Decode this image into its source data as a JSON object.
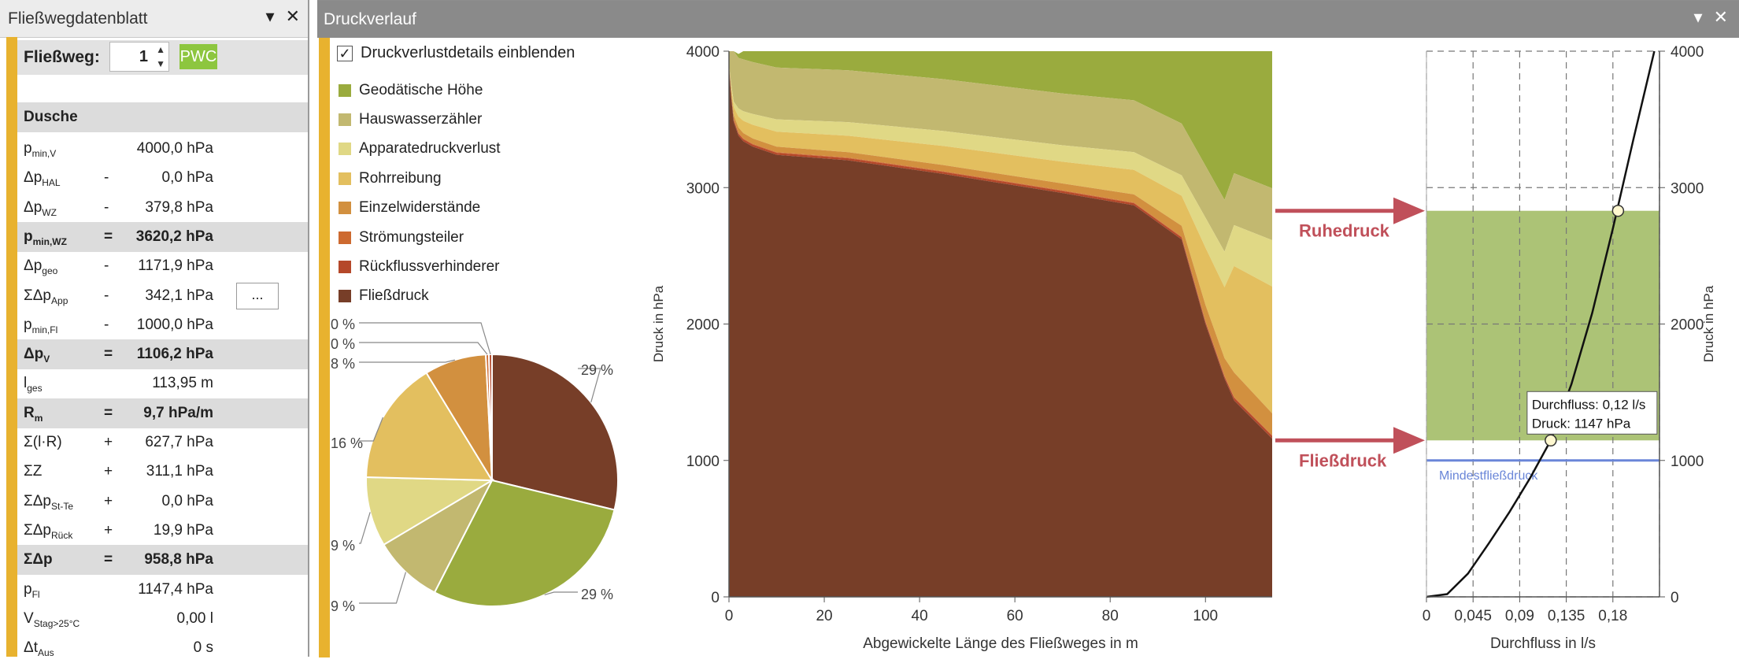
{
  "left": {
    "title": "Fließwegdatenblatt",
    "dropdown_icon": "triangle-down-icon",
    "close_icon": "close-icon",
    "fliessweg_label": "Fließweg:",
    "fliessweg_value": "1",
    "pwc_label": "PWC",
    "section_title": "Dusche",
    "rows": [
      {
        "sym": "p",
        "sub": "min,V",
        "op": "",
        "val": "4000,0 hPa",
        "band": false
      },
      {
        "sym": "Δp",
        "sub": "HAL",
        "op": "-",
        "val": "0,0 hPa",
        "band": false
      },
      {
        "sym": "Δp",
        "sub": "WZ",
        "op": "-",
        "val": "379,8 hPa",
        "band": false
      },
      {
        "sym": "p",
        "sub": "min,WZ",
        "op": "=",
        "val": "3620,2 hPa",
        "band": true
      },
      {
        "sym": "Δp",
        "sub": "geo",
        "op": "-",
        "val": "1171,9 hPa",
        "band": false
      },
      {
        "sym": "ΣΔp",
        "sub": "App",
        "op": "-",
        "val": "342,1 hPa",
        "band": false,
        "button": "..."
      },
      {
        "sym": "p",
        "sub": "min,Fl",
        "op": "-",
        "val": "1000,0 hPa",
        "band": false
      },
      {
        "sym": "Δp",
        "sub": "V",
        "op": "=",
        "val": "1106,2 hPa",
        "band": true
      },
      {
        "sym": "l",
        "sub": "ges",
        "op": "",
        "val": "113,95 m",
        "band": false
      },
      {
        "sym": "R",
        "sub": "m",
        "op": "=",
        "val": "9,7 hPa/m",
        "band": true
      },
      {
        "sym": "Σ(l·R)",
        "sub": "",
        "op": "+",
        "val": "627,7 hPa",
        "band": false
      },
      {
        "sym": "ΣZ",
        "sub": "",
        "op": "+",
        "val": "311,1 hPa",
        "band": false
      },
      {
        "sym": "ΣΔp",
        "sub": "St-Te",
        "op": "+",
        "val": "0,0 hPa",
        "band": false
      },
      {
        "sym": "ΣΔp",
        "sub": "Rück",
        "op": "+",
        "val": "19,9 hPa",
        "band": false
      },
      {
        "sym": "ΣΔp",
        "sub": "",
        "op": "=",
        "val": "958,8 hPa",
        "band": true
      },
      {
        "sym": "p",
        "sub": "Fl",
        "op": "",
        "val": "1147,4 hPa",
        "band": false
      },
      {
        "sym": "V",
        "sub": "Stag>25°C",
        "op": "",
        "val": "0,00 l",
        "band": false
      },
      {
        "sym": "Δt",
        "sub": "Aus",
        "op": "",
        "val": "0 s",
        "band": false
      }
    ]
  },
  "right": {
    "title": "Druckverlauf",
    "dropdown_icon": "triangle-down-icon",
    "close_icon": "close-icon",
    "details_checkbox_label": "Druckverlustdetails einblenden",
    "details_checked": true,
    "legend": [
      {
        "label": "Geodätische Höhe",
        "color": "#9aab3e"
      },
      {
        "label": "Hauswasserzähler",
        "color": "#c2b870"
      },
      {
        "label": "Apparatedruckverlust",
        "color": "#e0d885"
      },
      {
        "label": "Rohrreibung",
        "color": "#e3bf5f"
      },
      {
        "label": "Einzelwiderstände",
        "color": "#d2903f"
      },
      {
        "label": "Strömungsteiler",
        "color": "#cd6a30"
      },
      {
        "label": "Rückflussverhinderer",
        "color": "#b5482a"
      },
      {
        "label": "Fließdruck",
        "color": "#773e28"
      }
    ],
    "ruhedruck_label": "Ruhedruck",
    "fliessdruck_label": "Fließdruck",
    "arrow_color": "#c0505a",
    "mindestfliessdruck_label": "Mindestfließdruck",
    "tooltip_line1": "Durchfluss: 0,12 l/s",
    "tooltip_line2": "Druck: 1147 hPa"
  },
  "chart_data": [
    {
      "type": "pie",
      "slices": [
        {
          "series": "Fließdruck",
          "value": 29,
          "label": "29 %",
          "color": "#773e28"
        },
        {
          "series": "Geodätische Höhe",
          "value": 29,
          "label": "29 %",
          "color": "#9aab3e"
        },
        {
          "series": "Hauswasserzähler",
          "value": 9,
          "label": "9 %",
          "color": "#c2b870"
        },
        {
          "series": "Apparatedruckverlust",
          "value": 9,
          "label": "9 %",
          "color": "#e0d885"
        },
        {
          "series": "Rohrreibung",
          "value": 16,
          "label": "16 %",
          "color": "#e3bf5f"
        },
        {
          "series": "Einzelwiderstände",
          "value": 8,
          "label": "8 %",
          "color": "#d2903f"
        },
        {
          "series": "Strömungsteiler",
          "value": 0.4,
          "label": "0 %",
          "color": "#cd6a30"
        },
        {
          "series": "Rückflussverhinderer",
          "value": 0.4,
          "label": "0 %",
          "color": "#b5482a"
        }
      ]
    },
    {
      "type": "area",
      "stacked": true,
      "xlabel": "Abgewickelte Länge des Fließweges in m",
      "ylabel": "Druck in hPa",
      "xlim": [
        0,
        114
      ],
      "ylim": [
        0,
        4000
      ],
      "xticks": [
        0,
        20,
        40,
        60,
        80,
        100
      ],
      "yticks": [
        0,
        1000,
        2000,
        3000,
        4000
      ],
      "x": [
        0,
        0.5,
        1,
        2,
        3,
        5,
        10,
        25,
        45,
        70,
        85,
        95,
        100,
        104,
        106,
        114
      ],
      "series": [
        {
          "name": "Fließdruck",
          "color": "#773e28",
          "values": [
            3900,
            3650,
            3480,
            3380,
            3340,
            3300,
            3240,
            3200,
            3100,
            2960,
            2870,
            2620,
            2000,
            1600,
            1440,
            1160
          ]
        },
        {
          "name": "Rückflussverhinderer",
          "color": "#b5482a",
          "values": [
            0,
            10,
            15,
            15,
            15,
            15,
            15,
            15,
            15,
            15,
            15,
            15,
            15,
            15,
            20,
            20
          ]
        },
        {
          "name": "Strömungsteiler",
          "color": "#cd6a30",
          "values": [
            0,
            5,
            5,
            5,
            5,
            5,
            5,
            5,
            5,
            5,
            5,
            5,
            5,
            5,
            5,
            5
          ]
        },
        {
          "name": "Einzelwiderstände",
          "color": "#d2903f",
          "values": [
            0,
            25,
            30,
            40,
            40,
            40,
            40,
            40,
            45,
            50,
            60,
            80,
            120,
            130,
            180,
            160
          ]
        },
        {
          "name": "Rohrreibung",
          "color": "#e3bf5f",
          "values": [
            0,
            40,
            60,
            80,
            90,
            100,
            110,
            120,
            140,
            160,
            180,
            220,
            420,
            520,
            780,
            930
          ]
        },
        {
          "name": "Apparatedruckverlust",
          "color": "#e0d885",
          "values": [
            0,
            20,
            40,
            60,
            70,
            80,
            90,
            100,
            110,
            120,
            130,
            150,
            220,
            260,
            300,
            340
          ]
        },
        {
          "name": "Hauswasserzähler",
          "color": "#c2b870",
          "values": [
            100,
            250,
            370,
            370,
            380,
            380,
            380,
            380,
            380,
            380,
            380,
            380,
            380,
            380,
            380,
            380
          ]
        },
        {
          "name": "Geodätische Höhe",
          "color": "#9aab3e",
          "values": [
            0,
            0,
            0,
            30,
            60,
            80,
            120,
            140,
            205,
            310,
            360,
            530,
            840,
            1090,
            895,
            1005
          ]
        }
      ]
    },
    {
      "type": "line",
      "xlabel": "Durchfluss in l/s",
      "ylabel": "Druck in hPa",
      "xlim": [
        0,
        0.225
      ],
      "ylim": [
        0,
        4000
      ],
      "xticks": [
        "0",
        "0,045",
        "0,09",
        "0,135",
        "0,18"
      ],
      "yticks": [
        0,
        1000,
        2000,
        3000,
        4000
      ],
      "band": {
        "from": 1147,
        "to": 2830,
        "color": "#9db85e"
      },
      "mindestfliessdruck": 1000,
      "mindest_color": "#6a86d8",
      "curve_x": [
        0,
        0.02,
        0.04,
        0.06,
        0.08,
        0.1,
        0.12,
        0.14,
        0.16,
        0.18,
        0.2,
        0.22
      ],
      "curve_y": [
        0,
        20,
        170,
        390,
        620,
        870,
        1147,
        1560,
        2080,
        2700,
        3360,
        4000
      ],
      "points": [
        {
          "x": 0.12,
          "y": 1147
        },
        {
          "x": 0.185,
          "y": 2830
        }
      ]
    }
  ]
}
